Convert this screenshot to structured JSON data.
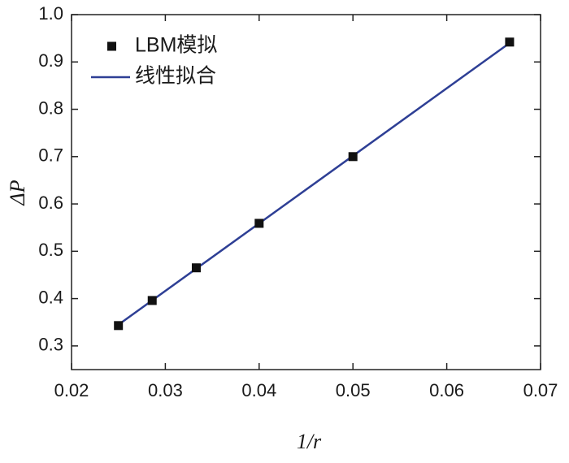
{
  "chart_data": {
    "type": "scatter",
    "x_label": "1/r",
    "y_label": "ΔP",
    "xlim": [
      0.02,
      0.07
    ],
    "ylim": [
      0.25,
      1.0
    ],
    "xticks": [
      0.02,
      0.03,
      0.04,
      0.05,
      0.06,
      0.07
    ],
    "yticks": [
      0.3,
      0.4,
      0.5,
      0.6,
      0.7,
      0.8,
      0.9,
      {
        "value": 1,
        "label": "1.0"
      }
    ],
    "legend": "upper left",
    "series": [
      {
        "name": "LBM模拟",
        "type": "scatter",
        "color": "#111111",
        "x": [
          0.025,
          0.0286,
          0.0333,
          0.04,
          0.05,
          0.0667
        ],
        "values": [
          0.343,
          0.396,
          0.465,
          0.559,
          0.7,
          0.942
        ]
      },
      {
        "name": "线性拟合",
        "type": "line",
        "color": "#2e3f95",
        "x": [
          0.0248,
          0.0667
        ],
        "values": [
          0.342,
          0.94
        ]
      }
    ]
  }
}
